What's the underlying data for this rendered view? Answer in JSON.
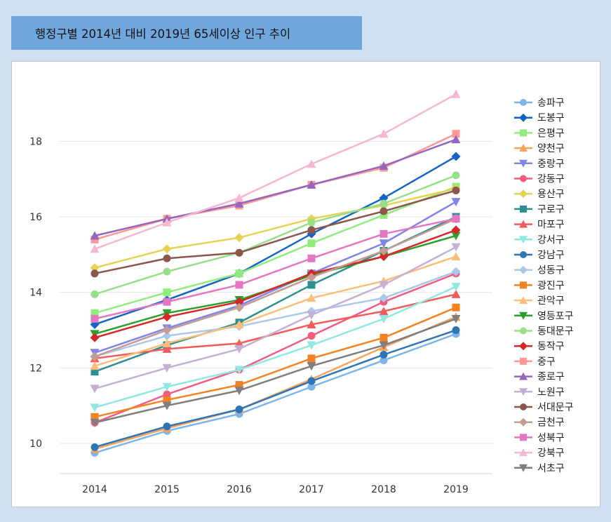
{
  "title": "행정구별 2014년 대비 2019년 65세이상 인구 추이",
  "chart_data": {
    "type": "line",
    "x": [
      "2014",
      "2015",
      "2016",
      "2017",
      "2018",
      "2019"
    ],
    "ylim": [
      9.2,
      19.7
    ],
    "yticks": [
      10,
      12,
      14,
      16,
      18
    ],
    "grid": true,
    "legend_position": "right",
    "series": [
      {
        "name": "송파구",
        "color": "#7cb5ec",
        "marker": "circle",
        "values": [
          9.75,
          10.33,
          10.78,
          11.5,
          12.2,
          12.9
        ]
      },
      {
        "name": "도봉구",
        "color": "#1464c8",
        "marker": "diamond",
        "values": [
          13.15,
          13.8,
          14.5,
          15.55,
          16.5,
          17.6
        ]
      },
      {
        "name": "은평구",
        "color": "#90ed7d",
        "marker": "square",
        "values": [
          13.45,
          14.0,
          14.5,
          15.3,
          16.05,
          16.8
        ]
      },
      {
        "name": "양천구",
        "color": "#f7a35c",
        "marker": "triangle",
        "values": [
          9.85,
          10.4,
          10.9,
          11.7,
          12.55,
          13.35
        ]
      },
      {
        "name": "중랑구",
        "color": "#8085e9",
        "marker": "triangle-down",
        "values": [
          12.4,
          13.05,
          13.65,
          14.5,
          15.3,
          16.4
        ]
      },
      {
        "name": "강동구",
        "color": "#f15c80",
        "marker": "circle",
        "values": [
          10.55,
          11.3,
          11.95,
          12.85,
          13.75,
          14.5
        ]
      },
      {
        "name": "용산구",
        "color": "#e4d354",
        "marker": "diamond",
        "values": [
          14.65,
          15.15,
          15.45,
          15.95,
          16.3,
          16.75
        ]
      },
      {
        "name": "구로구",
        "color": "#2b908f",
        "marker": "square",
        "values": [
          11.9,
          12.6,
          13.2,
          14.2,
          15.1,
          16.0
        ]
      },
      {
        "name": "마포구",
        "color": "#f45b5b",
        "marker": "triangle",
        "values": [
          12.25,
          12.5,
          12.65,
          13.15,
          13.5,
          13.95
        ]
      },
      {
        "name": "강서구",
        "color": "#91e8e1",
        "marker": "triangle-down",
        "values": [
          10.95,
          11.5,
          11.95,
          12.6,
          13.3,
          14.15
        ]
      },
      {
        "name": "강남구",
        "color": "#2e75b6",
        "marker": "circle",
        "values": [
          9.9,
          10.45,
          10.9,
          11.65,
          12.35,
          13.0
        ]
      },
      {
        "name": "성동구",
        "color": "#aac8ea",
        "marker": "diamond",
        "values": [
          12.3,
          12.85,
          13.1,
          13.5,
          13.85,
          14.55
        ]
      },
      {
        "name": "광진구",
        "color": "#f58220",
        "marker": "square",
        "values": [
          10.7,
          11.15,
          11.55,
          12.25,
          12.8,
          13.6
        ]
      },
      {
        "name": "관악구",
        "color": "#fbbf7a",
        "marker": "triangle",
        "values": [
          12.05,
          12.65,
          13.15,
          13.85,
          14.3,
          14.95
        ]
      },
      {
        "name": "영등포구",
        "color": "#2ca02c",
        "marker": "triangle-down",
        "values": [
          12.9,
          13.45,
          13.8,
          14.45,
          14.95,
          15.5
        ]
      },
      {
        "name": "동대문구",
        "color": "#98df8a",
        "marker": "circle",
        "values": [
          13.95,
          14.55,
          15.05,
          15.85,
          16.35,
          17.1
        ]
      },
      {
        "name": "동작구",
        "color": "#d62728",
        "marker": "diamond",
        "values": [
          12.8,
          13.35,
          13.75,
          14.5,
          14.95,
          15.65
        ]
      },
      {
        "name": "중구",
        "color": "#ff9896",
        "marker": "square",
        "values": [
          15.4,
          15.95,
          16.3,
          16.85,
          17.3,
          18.2
        ]
      },
      {
        "name": "종로구",
        "color": "#9467bd",
        "marker": "triangle",
        "values": [
          15.5,
          15.95,
          16.35,
          16.85,
          17.35,
          18.05
        ]
      },
      {
        "name": "노원구",
        "color": "#c5b0d5",
        "marker": "triangle-down",
        "values": [
          11.45,
          12.0,
          12.5,
          13.4,
          14.2,
          15.2
        ]
      },
      {
        "name": "서대문구",
        "color": "#8c564b",
        "marker": "circle",
        "values": [
          14.5,
          14.9,
          15.05,
          15.65,
          16.15,
          16.7
        ]
      },
      {
        "name": "금천구",
        "color": "#c49c94",
        "marker": "diamond",
        "values": [
          12.3,
          13.0,
          13.6,
          14.4,
          15.1,
          15.95
        ]
      },
      {
        "name": "성북구",
        "color": "#e377c2",
        "marker": "square",
        "values": [
          13.3,
          13.75,
          14.2,
          14.9,
          15.55,
          15.95
        ]
      },
      {
        "name": "강북구",
        "color": "#f7b6d2",
        "marker": "triangle",
        "values": [
          15.15,
          15.85,
          16.5,
          17.4,
          18.2,
          19.25
        ]
      },
      {
        "name": "서초구",
        "color": "#7f7f7f",
        "marker": "triangle-down",
        "values": [
          10.55,
          11.0,
          11.4,
          12.05,
          12.6,
          13.3
        ]
      }
    ]
  }
}
